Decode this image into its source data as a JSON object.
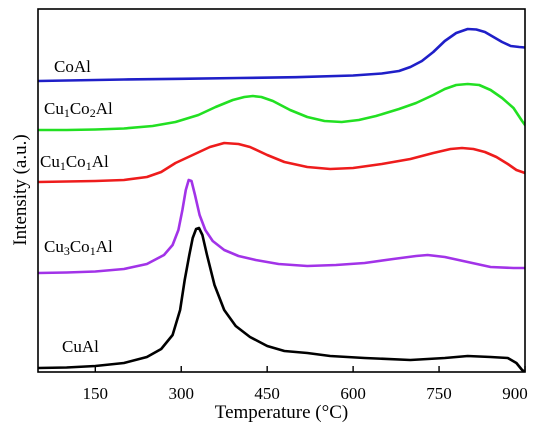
{
  "chart_data": {
    "type": "line",
    "xlabel": "Temperature (°C)",
    "ylabel": "Intensity (a.u.)",
    "xlim": [
      50,
      900
    ],
    "x_ticks": [
      150,
      300,
      450,
      600,
      750,
      900
    ],
    "y_ticks_shown": false,
    "grid": false,
    "legend": "inline labels at left",
    "series": [
      {
        "name": "CoAl",
        "label_parts": [
          {
            "t": "CoAl"
          }
        ],
        "color": "#1f1fc8",
        "points": [
          [
            40,
            81
          ],
          [
            100,
            80.5
          ],
          [
            150,
            80
          ],
          [
            200,
            79.5
          ],
          [
            300,
            78.8
          ],
          [
            400,
            78
          ],
          [
            500,
            77.2
          ],
          [
            600,
            75.5
          ],
          [
            650,
            73.5
          ],
          [
            680,
            71
          ],
          [
            700,
            67
          ],
          [
            720,
            61
          ],
          [
            740,
            52
          ],
          [
            760,
            41
          ],
          [
            780,
            33
          ],
          [
            800,
            29
          ],
          [
            815,
            29.5
          ],
          [
            830,
            32
          ],
          [
            845,
            37
          ],
          [
            860,
            42
          ],
          [
            875,
            46
          ],
          [
            890,
            47
          ],
          [
            900,
            47.5
          ]
        ]
      },
      {
        "name": "Cu1Co2Al",
        "label_parts": [
          {
            "t": "Cu"
          },
          {
            "t": "1",
            "sub": true
          },
          {
            "t": "Co"
          },
          {
            "t": "2",
            "sub": true
          },
          {
            "t": "Al"
          }
        ],
        "color": "#22e022",
        "points": [
          [
            40,
            130
          ],
          [
            100,
            130
          ],
          [
            150,
            129.5
          ],
          [
            200,
            128.5
          ],
          [
            250,
            126
          ],
          [
            290,
            122
          ],
          [
            330,
            115
          ],
          [
            360,
            107
          ],
          [
            390,
            100
          ],
          [
            410,
            97
          ],
          [
            425,
            96
          ],
          [
            440,
            97
          ],
          [
            460,
            101
          ],
          [
            490,
            110
          ],
          [
            520,
            117
          ],
          [
            550,
            121
          ],
          [
            580,
            122
          ],
          [
            610,
            120
          ],
          [
            640,
            116
          ],
          [
            680,
            109
          ],
          [
            710,
            103
          ],
          [
            740,
            95
          ],
          [
            760,
            89
          ],
          [
            780,
            85
          ],
          [
            800,
            84
          ],
          [
            820,
            85
          ],
          [
            840,
            90
          ],
          [
            860,
            98
          ],
          [
            880,
            108
          ],
          [
            895,
            121
          ],
          [
            900,
            125
          ]
        ]
      },
      {
        "name": "Cu1Co1Al",
        "label_parts": [
          {
            "t": "Cu"
          },
          {
            "t": "1",
            "sub": true
          },
          {
            "t": "Co"
          },
          {
            "t": "1",
            "sub": true
          },
          {
            "t": "Al"
          }
        ],
        "color": "#ee1c1c",
        "points": [
          [
            40,
            182
          ],
          [
            100,
            181.5
          ],
          [
            150,
            181
          ],
          [
            200,
            180
          ],
          [
            240,
            177
          ],
          [
            265,
            172
          ],
          [
            290,
            163
          ],
          [
            320,
            155
          ],
          [
            350,
            147
          ],
          [
            375,
            143
          ],
          [
            400,
            144
          ],
          [
            420,
            147
          ],
          [
            450,
            155
          ],
          [
            480,
            162
          ],
          [
            520,
            167
          ],
          [
            560,
            169
          ],
          [
            600,
            168
          ],
          [
            650,
            164
          ],
          [
            700,
            159
          ],
          [
            740,
            153
          ],
          [
            770,
            149
          ],
          [
            790,
            148
          ],
          [
            810,
            149
          ],
          [
            830,
            152
          ],
          [
            850,
            157
          ],
          [
            870,
            164
          ],
          [
            885,
            170
          ],
          [
            900,
            173
          ]
        ]
      },
      {
        "name": "Cu3Co1Al",
        "label_parts": [
          {
            "t": "Cu"
          },
          {
            "t": "3",
            "sub": true
          },
          {
            "t": "Co"
          },
          {
            "t": "1",
            "sub": true
          },
          {
            "t": "Al"
          }
        ],
        "color": "#a233e8",
        "points": [
          [
            40,
            273
          ],
          [
            100,
            272.5
          ],
          [
            150,
            271.5
          ],
          [
            200,
            269
          ],
          [
            240,
            264
          ],
          [
            270,
            255
          ],
          [
            285,
            245
          ],
          [
            295,
            230
          ],
          [
            302,
            210
          ],
          [
            308,
            190
          ],
          [
            313,
            180
          ],
          [
            318,
            181
          ],
          [
            324,
            195
          ],
          [
            332,
            215
          ],
          [
            342,
            230
          ],
          [
            355,
            241
          ],
          [
            375,
            250
          ],
          [
            400,
            256
          ],
          [
            430,
            260
          ],
          [
            470,
            264
          ],
          [
            520,
            266
          ],
          [
            570,
            265
          ],
          [
            620,
            263
          ],
          [
            670,
            259
          ],
          [
            710,
            256
          ],
          [
            730,
            255
          ],
          [
            760,
            257
          ],
          [
            800,
            262
          ],
          [
            840,
            267
          ],
          [
            880,
            268
          ],
          [
            900,
            268
          ]
        ]
      },
      {
        "name": "CuAl",
        "label_parts": [
          {
            "t": "CuAl"
          }
        ],
        "color": "#000000",
        "points": [
          [
            40,
            368
          ],
          [
            100,
            367.5
          ],
          [
            150,
            366
          ],
          [
            200,
            363
          ],
          [
            240,
            357
          ],
          [
            265,
            349
          ],
          [
            285,
            335
          ],
          [
            298,
            310
          ],
          [
            306,
            280
          ],
          [
            314,
            255
          ],
          [
            320,
            238
          ],
          [
            326,
            229
          ],
          [
            331,
            228
          ],
          [
            337,
            235
          ],
          [
            345,
            255
          ],
          [
            358,
            285
          ],
          [
            375,
            310
          ],
          [
            395,
            326
          ],
          [
            420,
            337
          ],
          [
            450,
            346
          ],
          [
            480,
            351
          ],
          [
            520,
            353
          ],
          [
            560,
            356
          ],
          [
            620,
            358
          ],
          [
            700,
            360
          ],
          [
            760,
            358
          ],
          [
            800,
            356
          ],
          [
            840,
            357
          ],
          [
            870,
            358
          ],
          [
            885,
            363
          ],
          [
            895,
            370
          ],
          [
            900,
            372
          ]
        ]
      }
    ]
  }
}
